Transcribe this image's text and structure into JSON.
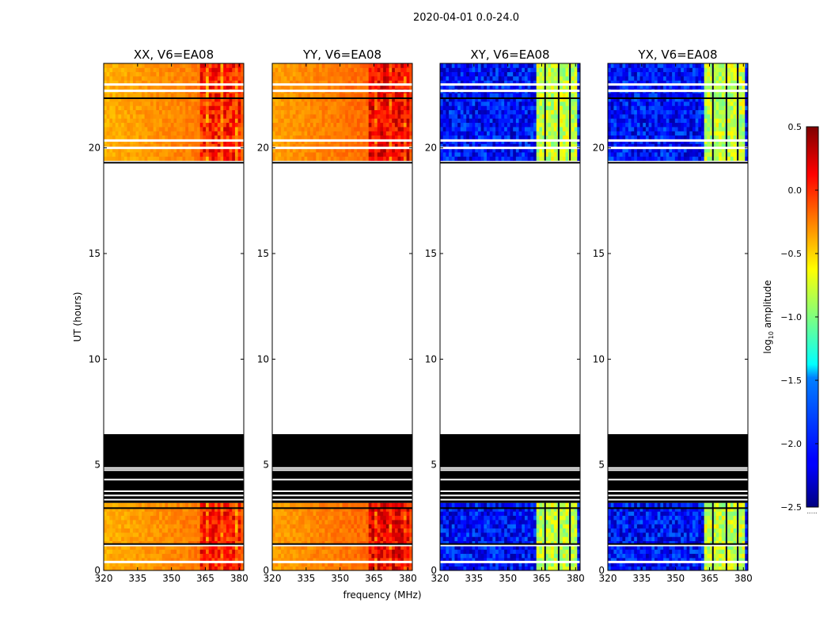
{
  "figure": {
    "suptitle": "2020-04-01 0.0-24.0",
    "xlabel": "frequency (MHz)",
    "ylabel": "UT (hours)",
    "colorbar_label_prefix": "log",
    "colorbar_label_sub": "10",
    "colorbar_label_suffix": " amplitude",
    "colorbar_hidden_tick": "......"
  },
  "colors": {
    "flagged_gap": "#ffffff",
    "flagged_block": "#000000",
    "frame": "#000000"
  },
  "chart_data": {
    "type": "heatmap",
    "colormap": "jet",
    "x_range": [
      320,
      382
    ],
    "y_range": [
      0,
      24
    ],
    "x_ticks": [
      320,
      335,
      350,
      365,
      380
    ],
    "y_ticks": [
      0,
      5,
      10,
      15,
      20
    ],
    "colorbar": {
      "vmin": -2.5,
      "vmax": 0.5,
      "ticks": [
        -2.5,
        -2.0,
        -1.5,
        -1.0,
        -0.5,
        0.0,
        0.5
      ],
      "tick_labels": [
        "−2.5",
        "−2.0",
        "−1.5",
        "−1.0",
        "−0.5",
        "0.0",
        "0.5"
      ]
    },
    "data_ranges_hours": [
      [
        0,
        3.2
      ],
      [
        19.4,
        24.0
      ]
    ],
    "empty_range_hours": [
      6.45,
      19.25
    ],
    "black_flagged_range_hours": [
      3.2,
      6.45
    ],
    "white_gap_lines_hours": [
      3.35,
      3.55,
      3.75,
      4.3,
      4.75,
      4.85
    ],
    "black_gap_lines_hours": [
      1.25,
      2.95,
      19.3,
      22.35
    ],
    "rfi_band_mhz": [
      362,
      381
    ],
    "panels": [
      {
        "title": "XX, V6=EA08",
        "product": "parallel",
        "base_log_amp": -0.4,
        "band_log_amp": 0.05
      },
      {
        "title": "YY, V6=EA08",
        "product": "parallel",
        "base_log_amp": -0.35,
        "band_log_amp": 0.15
      },
      {
        "title": "XY, V6=EA08",
        "product": "cross",
        "base_log_amp": -2.1,
        "band_log_amp": -0.8
      },
      {
        "title": "YX, V6=EA08",
        "product": "cross",
        "base_log_amp": -2.1,
        "band_log_amp": -0.8
      }
    ]
  }
}
